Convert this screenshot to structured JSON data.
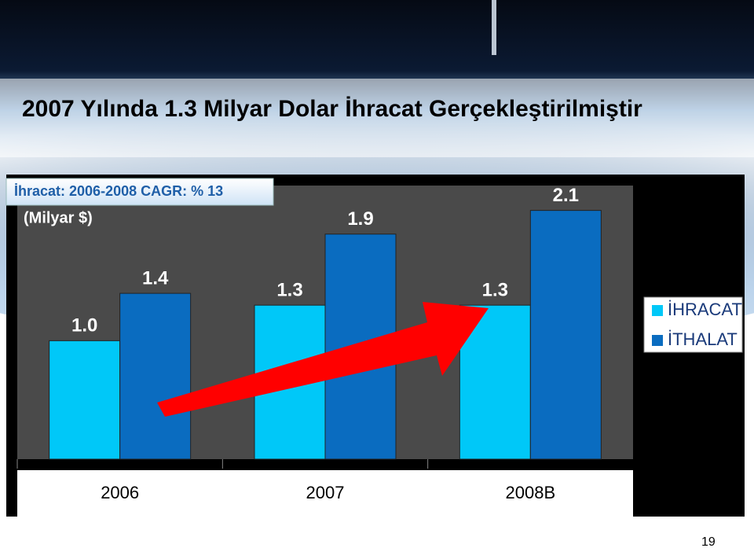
{
  "chart_data": {
    "type": "bar",
    "title": "2007 Yılında 1.3 Milyar Dolar İhracat Gerçekleştirilmiştir",
    "subtitle": "İhracat: 2006-2008 CAGR: % 13",
    "unit_label": "(Milyar $)",
    "categories": [
      "2006",
      "2007",
      "2008B"
    ],
    "series": [
      {
        "name": "İHRACAT",
        "color": "#00c8f8",
        "values": [
          1.0,
          1.3,
          1.3
        ],
        "value_labels": [
          "1.0",
          "1.3",
          "1.3"
        ]
      },
      {
        "name": "İTHALAT",
        "color": "#0a6cc0",
        "values": [
          1.4,
          1.9,
          2.1
        ]
      }
    ],
    "page_number": "19"
  }
}
